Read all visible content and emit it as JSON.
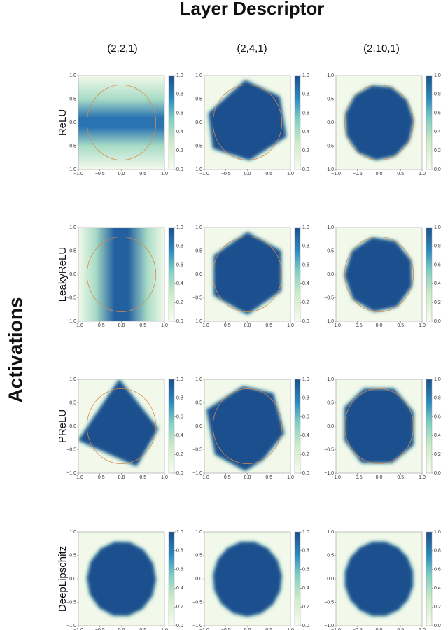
{
  "title": "Layer Descriptor",
  "row_title": "Activations",
  "columns": [
    "(2,2,1)",
    "(2,4,1)",
    "(2,10,1)"
  ],
  "rows": [
    "ReLU",
    "LeakyReLU",
    "PReLU",
    "DeepLipschitz"
  ],
  "xticks": [
    {
      "value": -1,
      "label": "−1.0"
    },
    {
      "value": -0.5,
      "label": "−0.5"
    },
    {
      "value": 0,
      "label": "0.0"
    },
    {
      "value": 0.5,
      "label": "0.5"
    },
    {
      "value": 1,
      "label": "1.0"
    }
  ],
  "yticks": [
    {
      "value": -1,
      "label": "−1.0"
    },
    {
      "value": -0.5,
      "label": "−0.5"
    },
    {
      "value": 0,
      "label": "0.0"
    },
    {
      "value": 0.5,
      "label": "0.5"
    },
    {
      "value": 1,
      "label": "1.0"
    }
  ],
  "colorbar_ticks": [
    {
      "value": 0,
      "label": "0.0"
    },
    {
      "value": 0.2,
      "label": "0.2"
    },
    {
      "value": 0.4,
      "label": "0.4"
    },
    {
      "value": 0.6,
      "label": "0.6"
    },
    {
      "value": 0.8,
      "label": "0.8"
    },
    {
      "value": 1,
      "label": "1.0"
    }
  ]
}
